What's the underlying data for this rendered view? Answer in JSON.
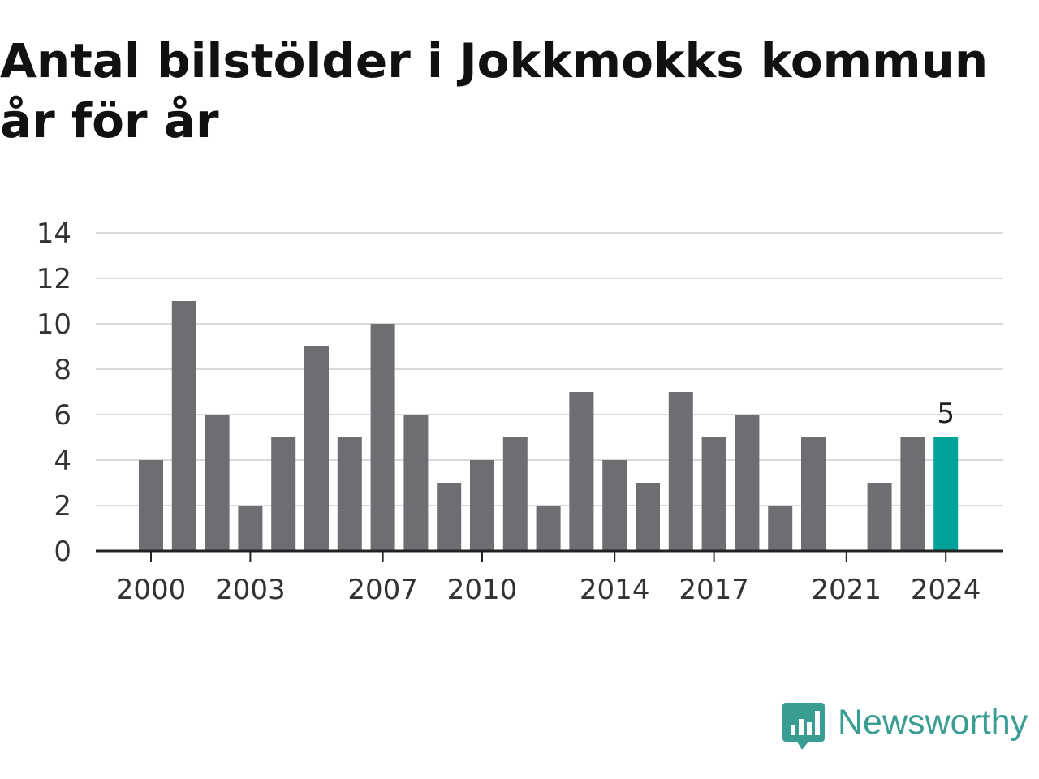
{
  "title": "Antal bilstölder i Jokkmokks kommun år för år",
  "brand": {
    "name": "Newsworthy",
    "color": "#3a9d91",
    "icon": "bar-chart-speech-bubble-icon"
  },
  "colors": {
    "bar": "#6d6d72",
    "highlight": "#00a39a",
    "grid": "#d9d9d9",
    "axis": "#222222"
  },
  "chart_data": {
    "type": "bar",
    "title": "Antal bilstölder i Jokkmokks kommun år för år",
    "xlabel": "",
    "ylabel": "",
    "categories": [
      "2000",
      "2001",
      "2002",
      "2003",
      "2004",
      "2005",
      "2006",
      "2007",
      "2008",
      "2009",
      "2010",
      "2011",
      "2012",
      "2013",
      "2014",
      "2015",
      "2016",
      "2017",
      "2018",
      "2019",
      "2020",
      "2021",
      "2022",
      "2023",
      "2024"
    ],
    "values": [
      4,
      11,
      6,
      2,
      5,
      9,
      5,
      10,
      6,
      3,
      4,
      5,
      2,
      7,
      4,
      3,
      7,
      5,
      6,
      2,
      5,
      0,
      3,
      5,
      5
    ],
    "ylim": [
      0,
      14
    ],
    "yticks": [
      "0",
      "2",
      "4",
      "6",
      "8",
      "10",
      "12",
      "14"
    ],
    "xticks": [
      "2000",
      "2003",
      "2007",
      "2010",
      "2014",
      "2017",
      "2021",
      "2024"
    ],
    "highlight": {
      "category": "2024",
      "label": "5"
    },
    "grid": true,
    "legend": "none"
  }
}
